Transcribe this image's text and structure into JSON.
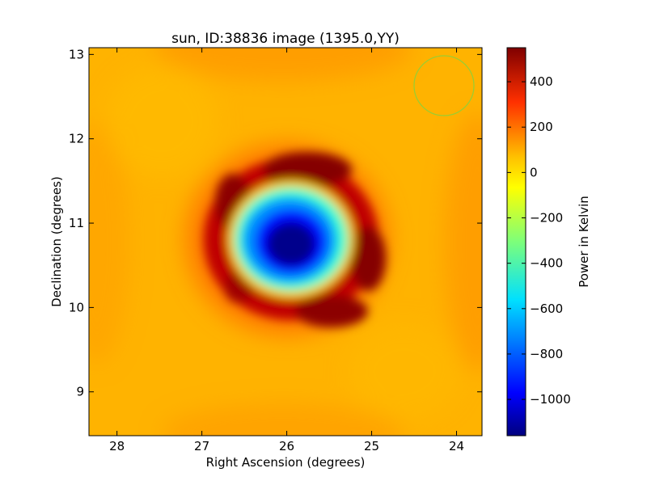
{
  "chart_data": {
    "type": "heatmap",
    "title": "sun, ID:38836 image (1395.0,YY)",
    "xlabel": "Right Ascension (degrees)",
    "ylabel": "Declination (degrees)",
    "xlim": [
      28.33,
      23.7
    ],
    "ylim": [
      8.48,
      13.08
    ],
    "x_ticks": [
      28,
      27,
      26,
      25,
      24
    ],
    "x_tick_labels": [
      "28",
      "27",
      "26",
      "25",
      "24"
    ],
    "y_ticks": [
      9,
      10,
      11,
      12,
      13
    ],
    "y_tick_labels": [
      "9",
      "10",
      "11",
      "12",
      "13"
    ],
    "grid": false,
    "colormap": "jet",
    "colorbar": {
      "label": "Power in Kelvin",
      "vmin": -1160,
      "vmax": 550,
      "ticks": [
        400,
        200,
        0,
        -200,
        -400,
        -600,
        -800,
        -1000
      ],
      "tick_labels": [
        "400",
        "200",
        "0",
        "−200",
        "−400",
        "−600",
        "−800",
        "−1000"
      ]
    },
    "features": {
      "background_level": 120,
      "central_min": {
        "ra": 25.95,
        "dec": 10.75,
        "value": -1150
      },
      "ring_max": {
        "value": 520,
        "radius_deg": 0.85
      },
      "beam_circle": {
        "ra": 24.12,
        "dec": 12.6,
        "radius_deg": 0.36,
        "color": "#9acd32"
      }
    }
  }
}
